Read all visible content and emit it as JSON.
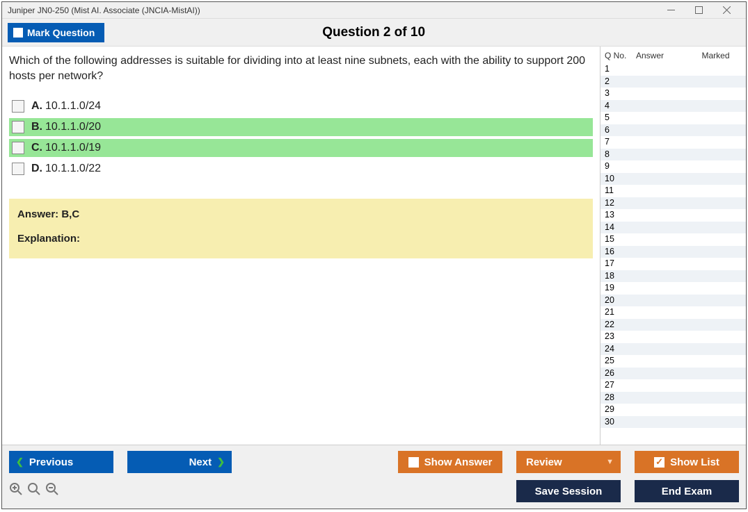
{
  "titlebar": {
    "title": "Juniper JN0-250 (Mist AI. Associate (JNCIA-MistAI))"
  },
  "header": {
    "mark_label": "Mark Question",
    "question_header": "Question 2 of 10"
  },
  "question": {
    "text": "Which of the following addresses is suitable for dividing into at least nine subnets, each with the ability to support 200 hosts per network?",
    "options": [
      {
        "letter": "A.",
        "text": "10.1.1.0/24",
        "highlight": false
      },
      {
        "letter": "B.",
        "text": "10.1.1.0/20",
        "highlight": true
      },
      {
        "letter": "C.",
        "text": "10.1.1.0/19",
        "highlight": true
      },
      {
        "letter": "D.",
        "text": "10.1.1.0/22",
        "highlight": false
      }
    ]
  },
  "answer": {
    "line": "Answer: B,C",
    "explanation_label": "Explanation:"
  },
  "side": {
    "headers": {
      "qno": "Q No.",
      "answer": "Answer",
      "marked": "Marked"
    },
    "count": 30
  },
  "footer": {
    "previous": "Previous",
    "next": "Next",
    "show_answer": "Show Answer",
    "review": "Review",
    "show_list": "Show List",
    "save_session": "Save Session",
    "end_exam": "End Exam"
  },
  "colors": {
    "blue": "#055cb4",
    "orange": "#d97326",
    "dark": "#1a2a4a",
    "highlight": "#97e697",
    "answer_bg": "#f7eeb0",
    "alt_row": "#eef2f6"
  }
}
